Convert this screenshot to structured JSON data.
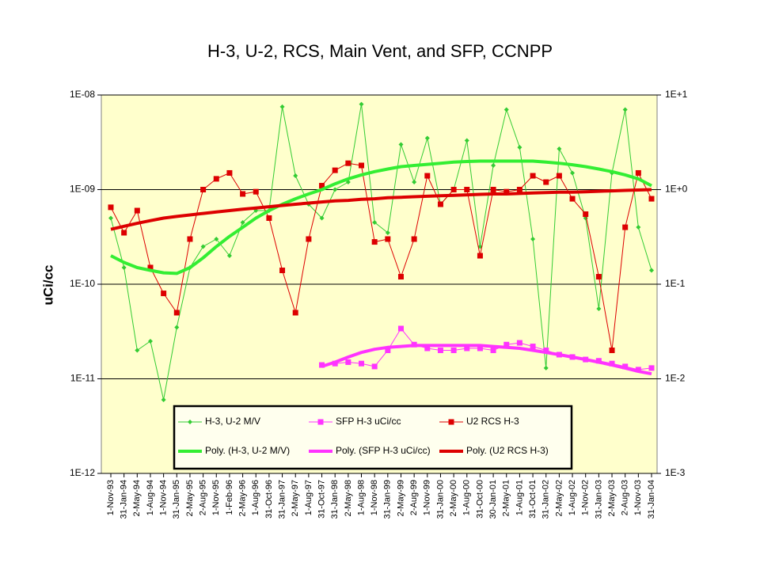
{
  "chart_data": {
    "type": "line",
    "title": "H-3, U-2, RCS, Main Vent, and SFP, CCNPP",
    "y_label": "uCi/cc",
    "log_scale": true,
    "grid": true,
    "legend_position": "bottom",
    "background": "#ffffcc",
    "categories": [
      "1-Nov-93",
      "31-Jan-94",
      "2-May-94",
      "1-Aug-94",
      "1-Nov-94",
      "31-Jan-95",
      "2-May-95",
      "2-Aug-95",
      "1-Nov-95",
      "1-Feb-96",
      "2-May-96",
      "1-Aug-96",
      "31-Oct-96",
      "31-Jan-97",
      "2-May-97",
      "1-Aug-97",
      "31-Oct-97",
      "31-Jan-98",
      "2-May-98",
      "1-Aug-98",
      "1-Nov-98",
      "31-Jan-99",
      "2-May-99",
      "2-Aug-99",
      "1-Nov-99",
      "31-Jan-00",
      "2-May-00",
      "1-Aug-00",
      "31-Oct-00",
      "30-Jan-01",
      "2-May-01",
      "1-Aug-01",
      "31-Oct-01",
      "31-Jan-02",
      "2-May-02",
      "1-Aug-02",
      "1-Nov-02",
      "31-Jan-03",
      "2-May-03",
      "2-Aug-03",
      "1-Nov-03",
      "31-Jan-04"
    ],
    "ylim": [
      1e-12,
      1e-08
    ],
    "yticks": [
      {
        "value": 1e-12,
        "label": "1E-12"
      },
      {
        "value": 1e-11,
        "label": "1E-11"
      },
      {
        "value": 1e-10,
        "label": "1E-10"
      },
      {
        "value": 1e-09,
        "label": "1E-09"
      },
      {
        "value": 1e-08,
        "label": "1E-08"
      }
    ],
    "y2lim": [
      0.001,
      10
    ],
    "y2ticks": [
      {
        "value": 0.001,
        "label": "1E-3"
      },
      {
        "value": 0.01,
        "label": "1E-2"
      },
      {
        "value": 0.1,
        "label": "1E-1"
      },
      {
        "value": 1,
        "label": "1E+0"
      },
      {
        "value": 10,
        "label": "1E+1"
      }
    ],
    "series": [
      {
        "name": "H-3, U-2 M/V",
        "color": "#33cc33",
        "marker": "diamond",
        "width": 1,
        "values": [
          5e-10,
          1.5e-10,
          2e-11,
          2.5e-11,
          6e-12,
          3.5e-11,
          1.5e-10,
          2.5e-10,
          3e-10,
          2e-10,
          4.5e-10,
          6e-10,
          6e-10,
          7.5e-09,
          1.4e-09,
          7e-10,
          5e-10,
          1e-09,
          1.2e-09,
          8e-09,
          4.5e-10,
          3.5e-10,
          3e-09,
          1.2e-09,
          3.5e-09,
          7e-10,
          1e-09,
          3.3e-09,
          2.5e-10,
          1.8e-09,
          7e-09,
          2.8e-09,
          3e-10,
          1.3e-11,
          2.7e-09,
          1.5e-09,
          5e-10,
          5.5e-11,
          1.5e-09,
          7e-09,
          4e-10,
          1.4e-10
        ]
      },
      {
        "name": "SFP H-3 uCi/cc",
        "color": "#ff33ff",
        "marker": "square",
        "width": 1,
        "values": [
          null,
          null,
          null,
          null,
          null,
          null,
          null,
          null,
          null,
          null,
          null,
          null,
          null,
          null,
          null,
          null,
          1.4e-11,
          1.45e-11,
          1.5e-11,
          1.45e-11,
          1.35e-11,
          2e-11,
          3.4e-11,
          2.3e-11,
          2.1e-11,
          2e-11,
          2e-11,
          2.1e-11,
          2.1e-11,
          2e-11,
          2.3e-11,
          2.4e-11,
          2.2e-11,
          2e-11,
          1.8e-11,
          1.7e-11,
          1.6e-11,
          1.55e-11,
          1.45e-11,
          1.35e-11,
          1.25e-11,
          1.3e-11
        ]
      },
      {
        "name": "U2 RCS H-3",
        "color": "#dd0000",
        "marker": "square",
        "width": 1,
        "axis": "y2",
        "values": [
          0.65,
          0.35,
          0.6,
          0.15,
          0.08,
          0.05,
          0.3,
          1.0,
          1.3,
          1.5,
          0.9,
          0.95,
          0.5,
          0.14,
          0.05,
          0.3,
          1.1,
          1.6,
          1.9,
          1.8,
          0.28,
          0.3,
          0.12,
          0.3,
          1.4,
          0.7,
          1.0,
          1.0,
          0.2,
          1.0,
          0.95,
          1.0,
          1.4,
          1.2,
          1.4,
          0.8,
          0.55,
          0.12,
          0.02,
          0.4,
          1.5,
          0.8
        ]
      },
      {
        "name": "Poly. (H-3, U-2 M/V)",
        "color": "#33ee33",
        "width": 4,
        "values": [
          2e-10,
          1.7e-10,
          1.5e-10,
          1.4e-10,
          1.32e-10,
          1.3e-10,
          1.5e-10,
          1.9e-10,
          2.5e-10,
          3.2e-10,
          4e-10,
          5e-10,
          6e-10,
          7e-10,
          8e-10,
          9e-10,
          1e-09,
          1.15e-09,
          1.3e-09,
          1.43e-09,
          1.55e-09,
          1.65e-09,
          1.75e-09,
          1.8e-09,
          1.85e-09,
          1.9e-09,
          1.95e-09,
          1.98e-09,
          2e-09,
          2e-09,
          2e-09,
          2e-09,
          2e-09,
          1.95e-09,
          1.9e-09,
          1.83e-09,
          1.75e-09,
          1.65e-09,
          1.55e-09,
          1.43e-09,
          1.3e-09,
          1.1e-09
        ]
      },
      {
        "name": "Poly. (SFP H-3 uCi/cc)",
        "color": "#ff33ff",
        "width": 4,
        "values": [
          null,
          null,
          null,
          null,
          null,
          null,
          null,
          null,
          null,
          null,
          null,
          null,
          null,
          null,
          null,
          null,
          1.35e-11,
          1.5e-11,
          1.7e-11,
          1.9e-11,
          2.05e-11,
          2.15e-11,
          2.2e-11,
          2.25e-11,
          2.25e-11,
          2.25e-11,
          2.25e-11,
          2.25e-11,
          2.25e-11,
          2.2e-11,
          2.15e-11,
          2.1e-11,
          2e-11,
          1.9e-11,
          1.8e-11,
          1.7e-11,
          1.6e-11,
          1.5e-11,
          1.4e-11,
          1.3e-11,
          1.2e-11,
          1.13e-11
        ]
      },
      {
        "name": "Poly. (U2 RCS H-3)",
        "color": "#dd0000",
        "width": 4,
        "axis": "y2",
        "values": [
          0.38,
          0.41,
          0.44,
          0.47,
          0.5,
          0.52,
          0.54,
          0.56,
          0.58,
          0.6,
          0.62,
          0.64,
          0.66,
          0.68,
          0.7,
          0.72,
          0.74,
          0.76,
          0.77,
          0.79,
          0.8,
          0.82,
          0.83,
          0.84,
          0.85,
          0.86,
          0.87,
          0.88,
          0.89,
          0.9,
          0.9,
          0.91,
          0.92,
          0.93,
          0.94,
          0.94,
          0.95,
          0.96,
          0.97,
          0.98,
          0.99,
          1.0
        ]
      }
    ]
  }
}
